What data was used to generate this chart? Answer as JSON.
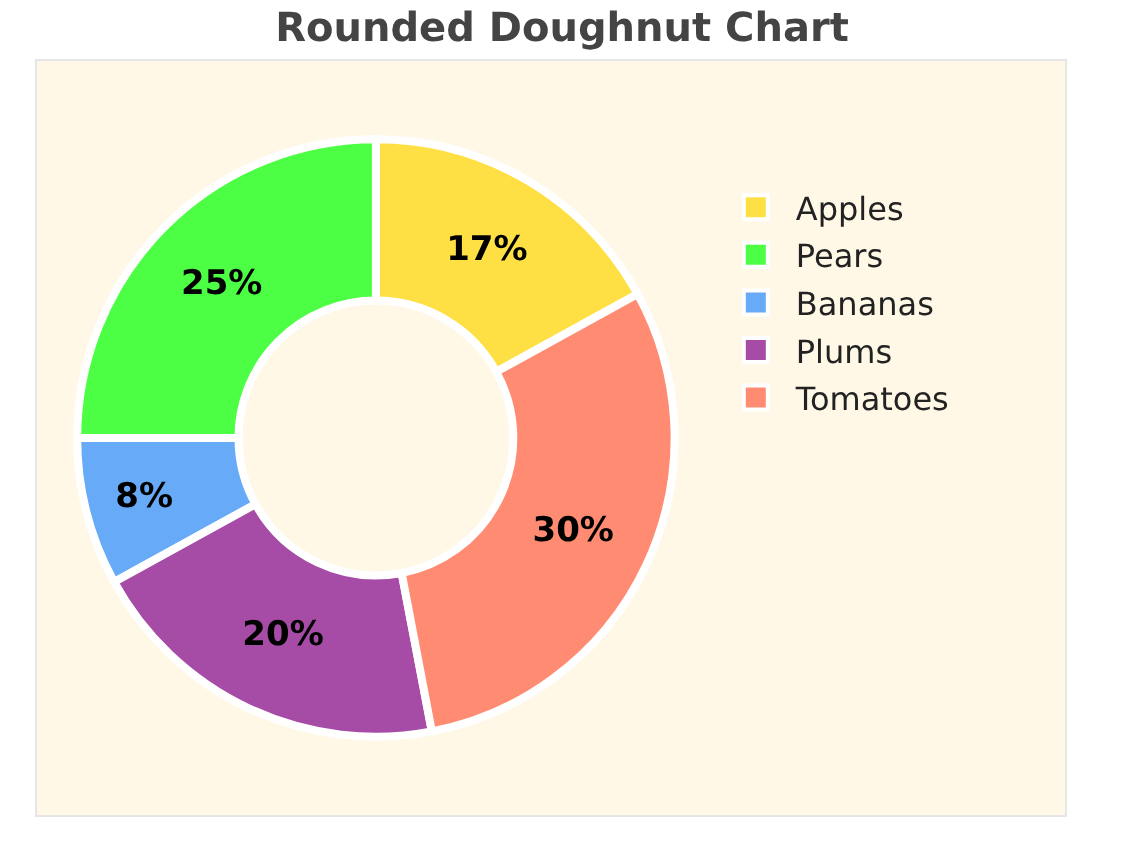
{
  "chart_data": {
    "type": "donut",
    "title": "Rounded Doughnut Chart",
    "categories": [
      "Apples",
      "Pears",
      "Bananas",
      "Plums",
      "Tomatoes"
    ],
    "values": [
      17,
      25,
      8,
      20,
      30
    ],
    "value_labels": [
      "17%",
      "25%",
      "8%",
      "20%",
      "30%"
    ],
    "colors": [
      "#ffe044",
      "#4cff44",
      "#66aaf8",
      "#a64ca6",
      "#ff8c72"
    ],
    "legend": "top right"
  }
}
